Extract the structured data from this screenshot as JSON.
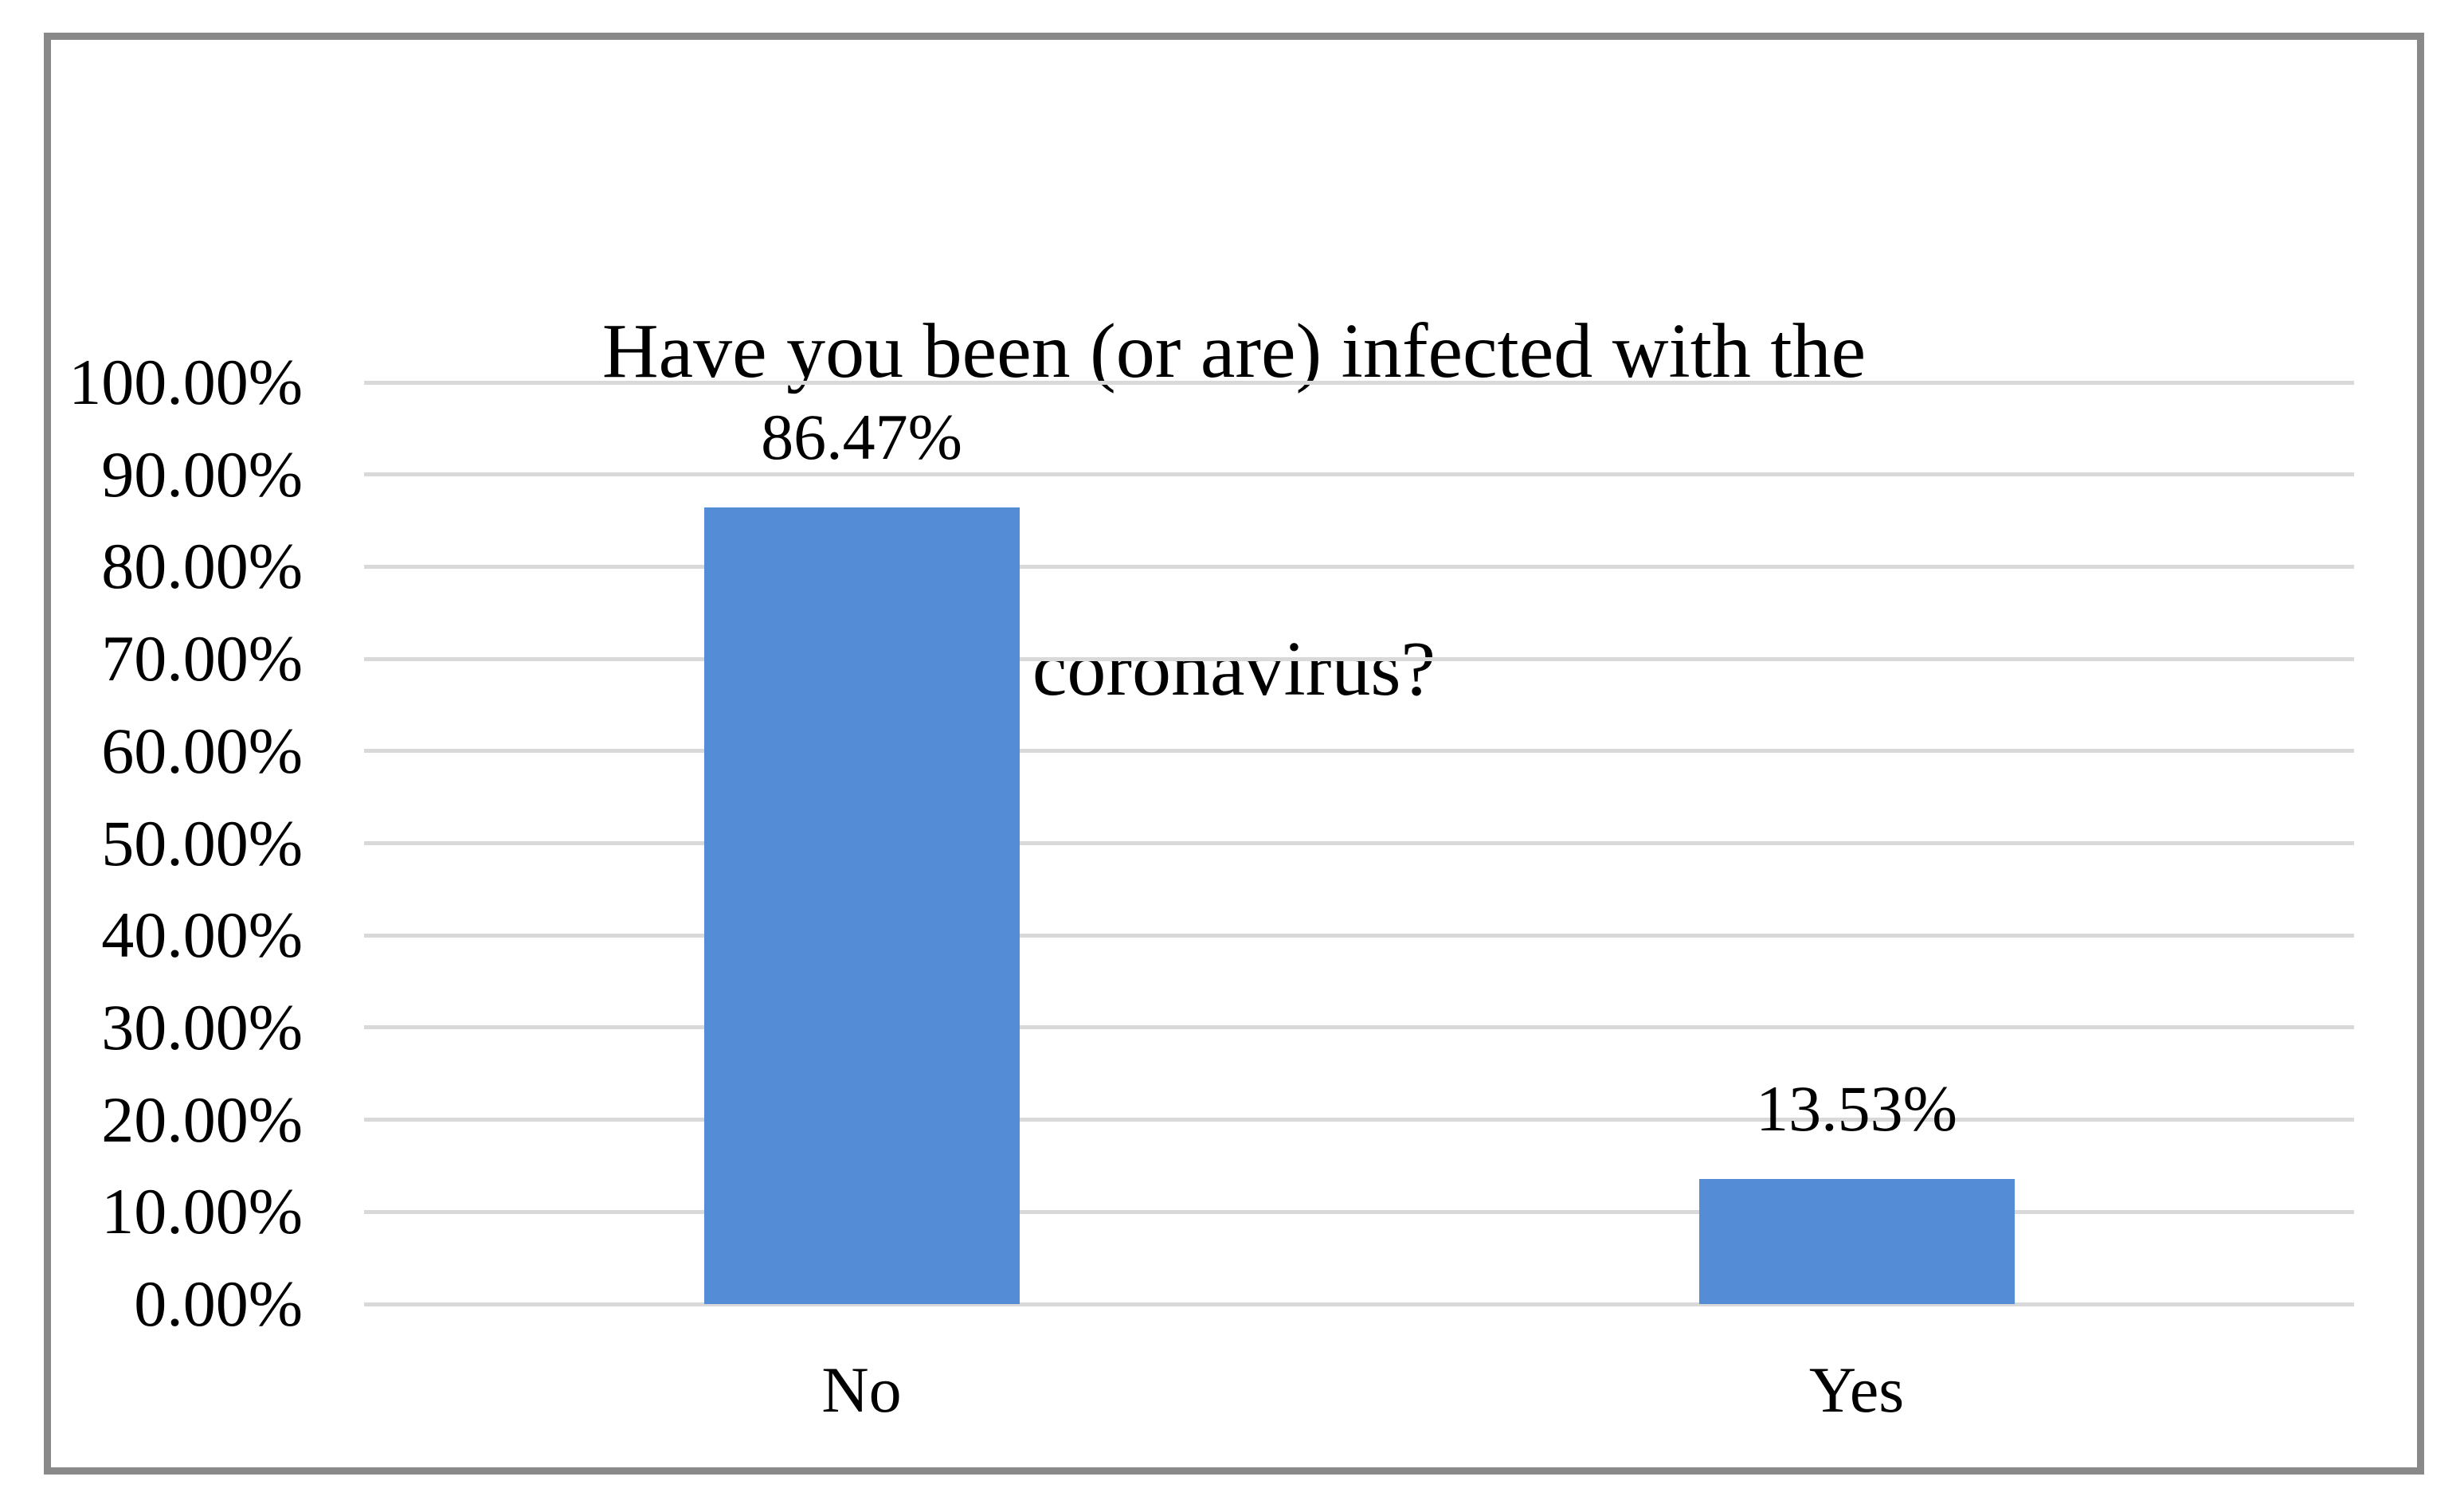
{
  "figure": {
    "background_color": "#FFFFFF",
    "frame_border_color": "#898989"
  },
  "chart_data": {
    "type": "bar",
    "title": "Have you been (or are) infected with the coronavirus?",
    "title_lines": [
      "Have you been (or are) infected with the",
      "coronavirus?"
    ],
    "categories": [
      "No",
      "Yes"
    ],
    "values": [
      86.47,
      13.53
    ],
    "data_labels": [
      "86.47%",
      "13.53%"
    ],
    "xlabel": "",
    "ylabel": "",
    "y_axis": {
      "min": 0,
      "max": 100,
      "tick_interval": 10,
      "tick_labels": [
        "100.00%",
        "90.00%",
        "80.00%",
        "70.00%",
        "60.00%",
        "50.00%",
        "40.00%",
        "30.00%",
        "20.00%",
        "10.00%",
        "0.00%"
      ]
    },
    "grid": true,
    "legend_position": "none",
    "bar_color": "#548CD5",
    "gridline_color": "#D9D9D9",
    "text_color": "#000000"
  }
}
